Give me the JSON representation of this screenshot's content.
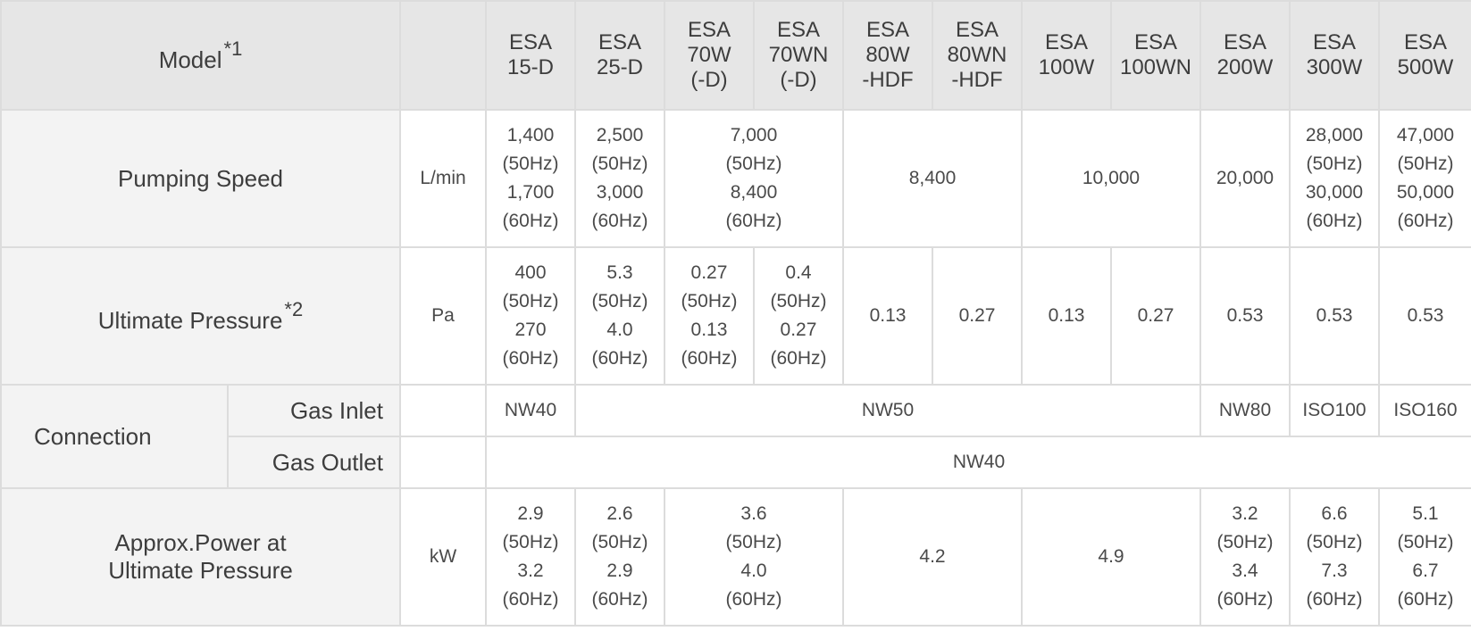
{
  "header": {
    "model_label": "Model",
    "model_note": "*1",
    "models": [
      "ESA\n15-D",
      "ESA\n25-D",
      "ESA\n70W\n(-D)",
      "ESA\n70WN\n(-D)",
      "ESA\n80W\n-HDF",
      "ESA\n80WN\n-HDF",
      "ESA\n100W",
      "ESA\n100WN",
      "ESA\n200W",
      "ESA\n300W",
      "ESA\n500W"
    ]
  },
  "pumping_speed": {
    "label": "Pumping Speed",
    "unit": "L/min",
    "values": [
      "1,400\n(50Hz)\n1,700\n(60Hz)",
      "2,500\n(50Hz)\n3,000\n(60Hz)",
      "7,000\n(50Hz)\n8,400\n(60Hz)",
      "8,400",
      "10,000",
      "20,000",
      "28,000\n(50Hz)\n30,000\n(60Hz)",
      "47,000\n(50Hz)\n50,000\n(60Hz)"
    ]
  },
  "ultimate_pressure": {
    "label": "Ultimate Pressure",
    "note": "*2",
    "unit": "Pa",
    "values": [
      "400\n(50Hz)\n270\n(60Hz)",
      "5.3\n(50Hz)\n4.0\n(60Hz)",
      "0.27\n(50Hz)\n0.13\n(60Hz)",
      "0.4\n(50Hz)\n0.27\n(60Hz)",
      "0.13",
      "0.27",
      "0.13",
      "0.27",
      "0.53",
      "0.53",
      "0.53"
    ]
  },
  "connection": {
    "label": "Connection",
    "gas_inlet": {
      "label": "Gas Inlet",
      "values": [
        "NW40",
        "NW50",
        "NW80",
        "ISO100",
        "ISO160"
      ]
    },
    "gas_outlet": {
      "label": "Gas Outlet",
      "value": "NW40"
    }
  },
  "power": {
    "label": "Approx.Power at\nUltimate Pressure",
    "unit": "kW",
    "values": [
      "2.9\n(50Hz)\n3.2\n(60Hz)",
      "2.6\n(50Hz)\n2.9\n(60Hz)",
      "3.6\n(50Hz)\n4.0\n(60Hz)",
      "4.2",
      "4.9",
      "3.2\n(50Hz)\n3.4\n(60Hz)",
      "6.6\n(50Hz)\n7.3\n(60Hz)",
      "5.1\n(50Hz)\n6.7\n(60Hz)"
    ]
  }
}
